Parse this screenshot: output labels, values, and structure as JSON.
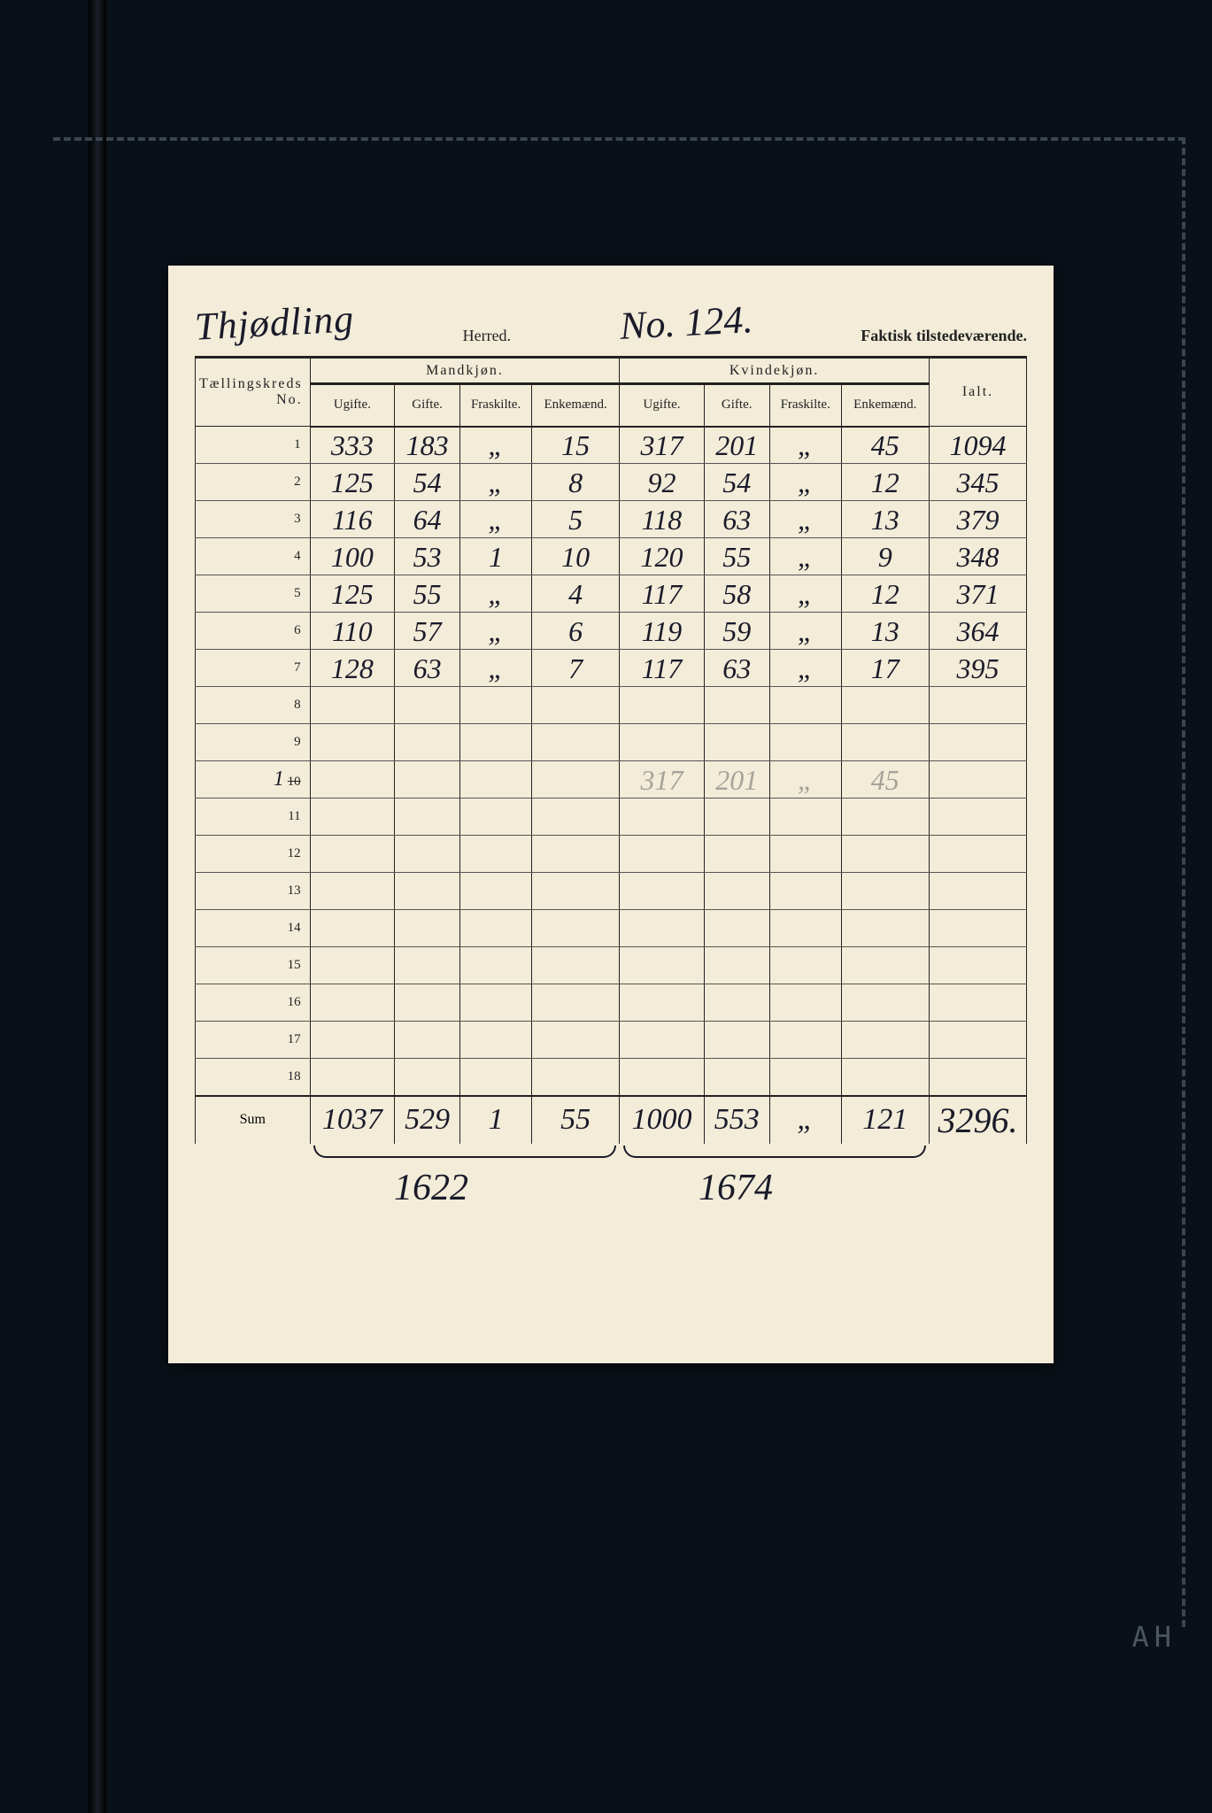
{
  "background_color": "#0a1018",
  "page_color": "#f2ecd8",
  "ink_color": "#1a1a2a",
  "print_color": "#222222",
  "dash_color": "#3a4550",
  "header": {
    "herred_name": "Thjødling",
    "herred_label": "Herred.",
    "herred_no": "No. 124.",
    "faktisk": "Faktisk tilstedeværende."
  },
  "col_labels": {
    "kreds": "Tællingskreds No.",
    "mand": "Mandkjøn.",
    "kvinde": "Kvindekjøn.",
    "ugifte": "Ugifte.",
    "gifte": "Gifte.",
    "fraskilte": "Fraskilte.",
    "enkemand": "Enkemænd.",
    "ialt": "Ialt."
  },
  "rows": [
    {
      "no": "1",
      "mu": "333",
      "mg": "183",
      "mf": "„",
      "me": "15",
      "ku": "317",
      "kg": "201",
      "kf": "„",
      "ke": "45",
      "ialt": "1094"
    },
    {
      "no": "2",
      "mu": "125",
      "mg": "54",
      "mf": "„",
      "me": "8",
      "ku": "92",
      "kg": "54",
      "kf": "„",
      "ke": "12",
      "ialt": "345"
    },
    {
      "no": "3",
      "mu": "116",
      "mg": "64",
      "mf": "„",
      "me": "5",
      "ku": "118",
      "kg": "63",
      "kf": "„",
      "ke": "13",
      "ialt": "379"
    },
    {
      "no": "4",
      "mu": "100",
      "mg": "53",
      "mf": "1",
      "me": "10",
      "ku": "120",
      "kg": "55",
      "kf": "„",
      "ke": "9",
      "ialt": "348"
    },
    {
      "no": "5",
      "mu": "125",
      "mg": "55",
      "mf": "„",
      "me": "4",
      "ku": "117",
      "kg": "58",
      "kf": "„",
      "ke": "12",
      "ialt": "371"
    },
    {
      "no": "6",
      "mu": "110",
      "mg": "57",
      "mf": "„",
      "me": "6",
      "ku": "119",
      "kg": "59",
      "kf": "„",
      "ke": "13",
      "ialt": "364"
    },
    {
      "no": "7",
      "mu": "128",
      "mg": "63",
      "mf": "„",
      "me": "7",
      "ku": "117",
      "kg": "63",
      "kf": "„",
      "ke": "17",
      "ialt": "395"
    }
  ],
  "empty_rows": [
    "8",
    "9"
  ],
  "ghost_row": {
    "no": "10",
    "prefix": "1",
    "ku": "317",
    "kg": "201",
    "kf": "„",
    "ke": "45"
  },
  "empty_rows_after": [
    "11",
    "12",
    "13",
    "14",
    "15",
    "16",
    "17",
    "18"
  ],
  "sum": {
    "label": "Sum",
    "mu": "1037",
    "mg": "529",
    "mf": "1",
    "me": "55",
    "ku": "1000",
    "kg": "553",
    "kf": "„",
    "ke": "121",
    "ialt": "3296."
  },
  "subtotals": {
    "male": "1622",
    "female": "1674"
  },
  "corner_label": "AH"
}
